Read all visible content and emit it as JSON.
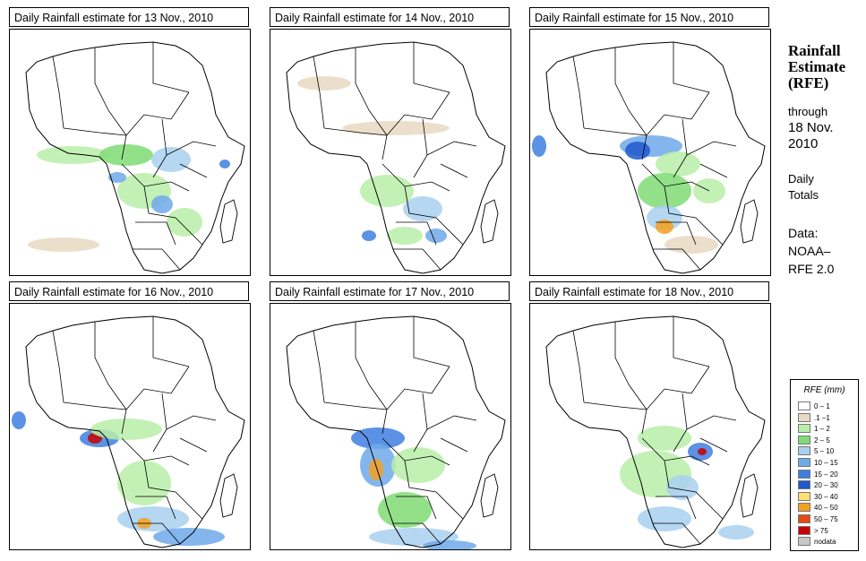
{
  "panels": [
    {
      "title": "Daily Rainfall estimate for  13 Nov., 2010"
    },
    {
      "title": "Daily Rainfall estimate for  14 Nov., 2010"
    },
    {
      "title": "Daily Rainfall estimate for  15 Nov., 2010"
    },
    {
      "title": "Daily Rainfall estimate for  16 Nov., 2010"
    },
    {
      "title": "Daily Rainfall estimate for  17 Nov., 2010"
    },
    {
      "title": "Daily Rainfall estimate for  18 Nov., 2010"
    }
  ],
  "side": {
    "heading1": "Rainfall",
    "heading2": "Estimate",
    "heading3": "(RFE)",
    "through": "through",
    "date1": "18 Nov.",
    "date2": "2010",
    "daily1": "Daily",
    "daily2": "Totals",
    "data1": "Data:",
    "data2": "NOAA–",
    "data3": "RFE 2.0"
  },
  "legend": {
    "title": "RFE (mm)",
    "items": [
      {
        "label": "0 – 1",
        "color": "#ffffff"
      },
      {
        "label": ".1 –1",
        "color": "#e8d9c3"
      },
      {
        "label": "1 – 2",
        "color": "#b9efa8"
      },
      {
        "label": "2 – 5",
        "color": "#7fdc74"
      },
      {
        "label": "5 – 10",
        "color": "#a8d0f0"
      },
      {
        "label": "10 – 15",
        "color": "#6fa9ea"
      },
      {
        "label": "15 – 20",
        "color": "#3f7fe0"
      },
      {
        "label": "20 – 30",
        "color": "#1f58cf"
      },
      {
        "label": "30 – 40",
        "color": "#ffe070"
      },
      {
        "label": "40 – 50",
        "color": "#f5a020"
      },
      {
        "label": "50 – 75",
        "color": "#e54a10"
      },
      {
        "label": "> 75",
        "color": "#c80000"
      },
      {
        "label": "nodata",
        "color": "#c8c8c8"
      }
    ]
  }
}
